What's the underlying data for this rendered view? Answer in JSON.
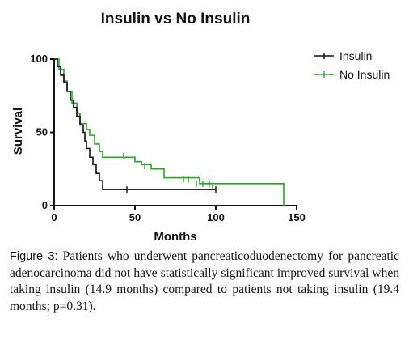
{
  "chart_data": {
    "type": "line",
    "title": "Insulin vs No Insulin",
    "xlabel": "Months",
    "ylabel": "Survival",
    "xlim": [
      0,
      150
    ],
    "ylim": [
      0,
      100
    ],
    "xticks": [
      0,
      50,
      100,
      150
    ],
    "yticks": [
      0,
      50,
      100
    ],
    "legend_position": "top-right",
    "step": true,
    "series": [
      {
        "name": "Insulin",
        "color": "#111111",
        "points": [
          [
            0,
            100
          ],
          [
            2,
            95
          ],
          [
            4,
            89
          ],
          [
            6,
            84
          ],
          [
            8,
            78
          ],
          [
            10,
            72
          ],
          [
            12,
            67
          ],
          [
            14,
            61
          ],
          [
            16,
            55
          ],
          [
            18,
            50
          ],
          [
            19,
            44
          ],
          [
            20,
            39
          ],
          [
            22,
            33
          ],
          [
            24,
            28
          ],
          [
            26,
            22
          ],
          [
            28,
            17
          ],
          [
            30,
            11
          ],
          [
            100,
            11
          ]
        ],
        "censored": [
          [
            45,
            11
          ],
          [
            100,
            11
          ]
        ]
      },
      {
        "name": "No Insulin",
        "color": "#22aa22",
        "points": [
          [
            0,
            100
          ],
          [
            3,
            93
          ],
          [
            6,
            85
          ],
          [
            8,
            78
          ],
          [
            11,
            70
          ],
          [
            14,
            63
          ],
          [
            16,
            56
          ],
          [
            20,
            52
          ],
          [
            22,
            48
          ],
          [
            25,
            42
          ],
          [
            28,
            37
          ],
          [
            30,
            33
          ],
          [
            48,
            33
          ],
          [
            50,
            30
          ],
          [
            54,
            28
          ],
          [
            60,
            25
          ],
          [
            68,
            19
          ],
          [
            90,
            15
          ],
          [
            142,
            13
          ],
          [
            142,
            0
          ]
        ],
        "censored": [
          [
            43,
            34
          ],
          [
            56,
            27
          ],
          [
            80,
            18
          ],
          [
            83,
            18
          ],
          [
            88,
            15
          ],
          [
            92,
            15
          ],
          [
            96,
            15
          ],
          [
            98,
            13
          ]
        ]
      }
    ]
  },
  "caption": {
    "label": "Figure 3:",
    "text": " Patients who underwent pancreaticoduodenectomy for pancreatic adenocarcinoma did not have statistically significant improved survival when taking insulin (14.9 months) compared to patients not taking insulin (19.4 months; p=0.31)."
  }
}
